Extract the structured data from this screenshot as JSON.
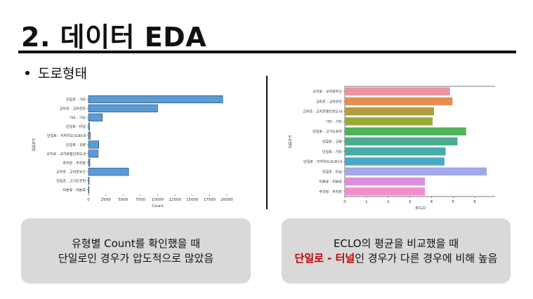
{
  "slide": {
    "title": "2. 데이터 EDA",
    "bullet": "도로형태"
  },
  "left_card": {
    "line1": "유형별 Count를 확인했을 때",
    "line2": "단일로인 경우가 압도적으로 많았음"
  },
  "right_card": {
    "line1": "ECLO의 평균을 비교했을 때",
    "line2_highlight": "단일로 - 터널",
    "line2_rest": "인 경우가 다른 경우에 비해 높음",
    "highlight_color": "#c00000"
  },
  "chart_data": [
    {
      "type": "bar",
      "orientation": "horizontal",
      "categories": [
        "단일로 - 기타",
        "교차로 - 교차로안",
        "기타 - 기타",
        "단일로 - 터널",
        "단일로 - 지하차도(도로)내",
        "단일로 - 교량",
        "교차로 - 교차로횡단보도내",
        "주차장 - 주차장",
        "교차로 - 교차로부근",
        "단일로 - 고가도로위",
        "미분류 - 미분류"
      ],
      "values": [
        19400,
        10000,
        2000,
        150,
        250,
        1500,
        1400,
        200,
        5800,
        100,
        20
      ],
      "xlabel": "Count",
      "ylabel": "도로형태",
      "xlim": [
        0,
        20000
      ],
      "xticks": [
        0,
        2500,
        5000,
        7500,
        10000,
        12500,
        15000,
        17500,
        20000
      ],
      "color": "#5b9bd5"
    },
    {
      "type": "bar",
      "orientation": "horizontal",
      "categories": [
        "교차로 - 교차로부근",
        "교차로 - 교차로안",
        "교차로 - 교차로횡단보도내",
        "기타 - 기타",
        "단일로 - 고가도로위",
        "단일로 - 교량",
        "단일로 - 기타",
        "단일로 - 지하차도(도로)내",
        "단일로 - 터널",
        "미분류 - 미분류",
        "주차장 - 주차장"
      ],
      "values": [
        4.85,
        4.97,
        4.12,
        4.05,
        5.6,
        5.2,
        4.65,
        4.6,
        6.55,
        3.7,
        3.7
      ],
      "colors": [
        "#f0929c",
        "#e59050",
        "#b39d3f",
        "#9aaa3a",
        "#4fb357",
        "#47ad8c",
        "#48aaa9",
        "#4aa9c8",
        "#a3a8ea",
        "#d88fe0",
        "#ef8ed2"
      ],
      "xlabel": "ECLO",
      "ylabel": "도로형태",
      "xlim": [
        0,
        7
      ],
      "xticks": [
        0,
        1,
        2,
        3,
        4,
        5,
        6
      ]
    }
  ]
}
